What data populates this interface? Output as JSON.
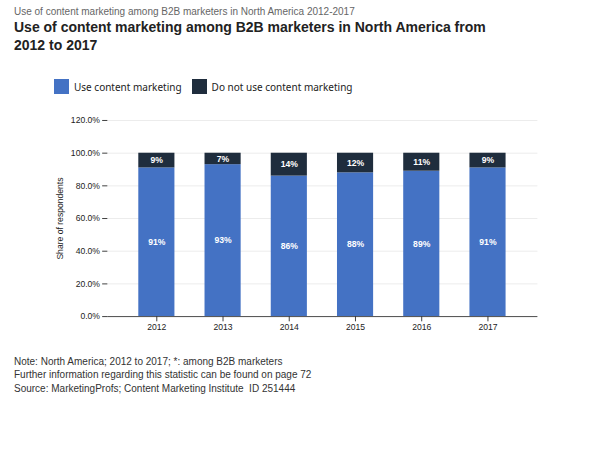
{
  "chart_data": {
    "type": "bar",
    "stacked": true,
    "title": "Use of content marketing among B2B marketers in North America from\n2012 to 2017",
    "subtitle": "Use of content marketing among B2B marketers in North America 2012-2017",
    "ylabel": "Share of respondents",
    "categories": [
      "2012",
      "2013",
      "2014",
      "2015",
      "2016",
      "2017"
    ],
    "series": [
      {
        "name": "Use content marketing",
        "color": "#4472C4",
        "values": [
          91,
          93,
          86,
          88,
          89,
          91
        ],
        "value_labels": [
          "91%",
          "93%",
          "86%",
          "88%",
          "89%",
          "91%"
        ]
      },
      {
        "name": "Do not use content marketing",
        "color": "#1F2D3D",
        "values": [
          9,
          7,
          14,
          12,
          11,
          9
        ],
        "value_labels": [
          "9%",
          "7%",
          "14%",
          "12%",
          "11%",
          "9%"
        ]
      }
    ],
    "ylim": [
      0,
      120
    ],
    "yticks": [
      {
        "value": 0,
        "label": "0.0%"
      },
      {
        "value": 20,
        "label": "20.0%"
      },
      {
        "value": 40,
        "label": "40.0%"
      },
      {
        "value": 60,
        "label": "60.0%"
      },
      {
        "value": 80,
        "label": "80.0%"
      },
      {
        "value": 100,
        "label": "100.0%"
      },
      {
        "value": 120,
        "label": "120.0%"
      }
    ],
    "grid": true,
    "legend": "top",
    "data_labels": true,
    "annotations": [
      "Note: North America; 2012 to 2017; *: among B2B marketers",
      "Further information regarding this statistic can be found on page 72",
      "Source: MarketingProfs; Content Marketing Institute  ID 251444"
    ]
  }
}
